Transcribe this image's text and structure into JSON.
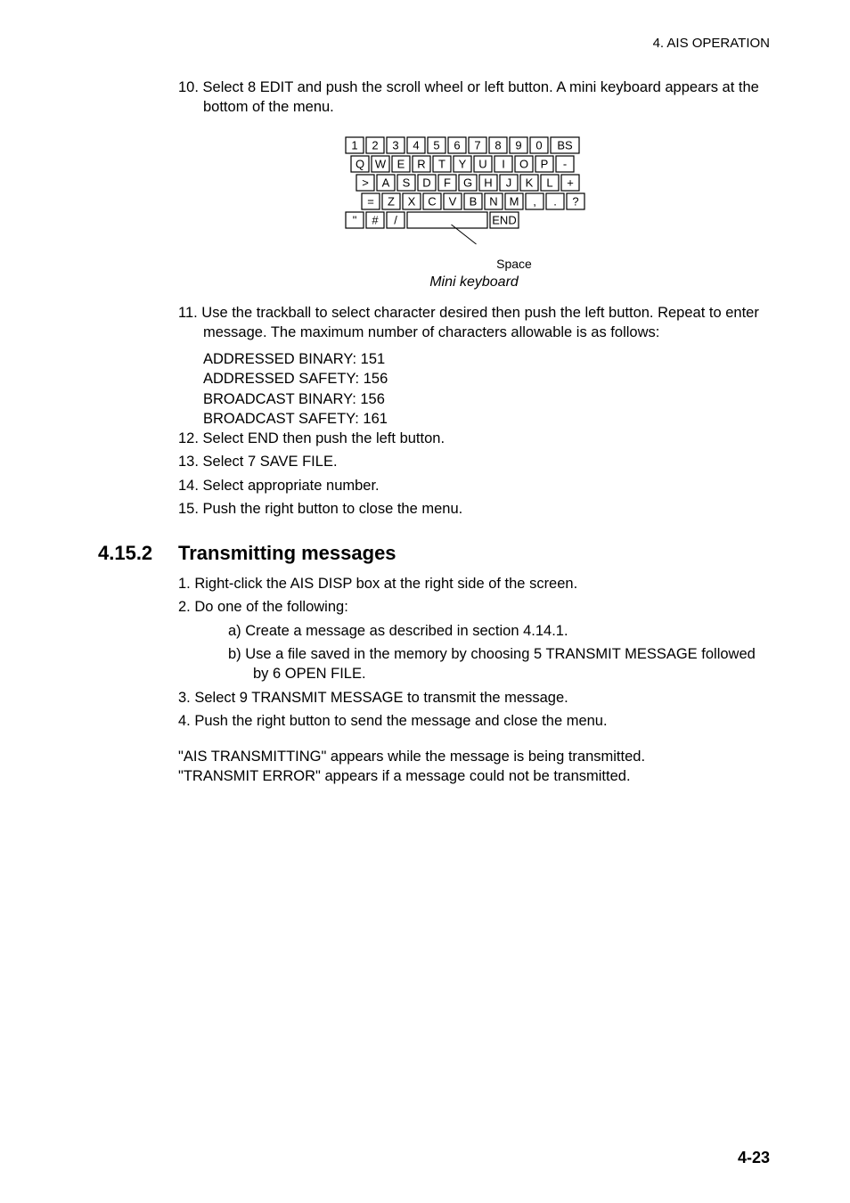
{
  "header": {
    "chapter": "4. AIS OPERATION"
  },
  "step10": {
    "text": "10. Select 8 EDIT and push the scroll wheel or left button. A mini keyboard appears at the bottom of the menu."
  },
  "keyboard": {
    "rows": [
      [
        "1",
        "2",
        "3",
        "4",
        "5",
        "6",
        "7",
        "8",
        "9",
        "0",
        "BS"
      ],
      [
        "Q",
        "W",
        "E",
        "R",
        "T",
        "Y",
        "U",
        "I",
        "O",
        "P",
        "-"
      ],
      [
        ">",
        "A",
        "S",
        "D",
        "F",
        "G",
        "H",
        "J",
        "K",
        "L",
        "+"
      ],
      [
        "=",
        "Z",
        "X",
        "C",
        "V",
        "B",
        "N",
        "M",
        ",",
        ".",
        "?"
      ],
      [
        "\"",
        "#",
        "/",
        "SPACE",
        "END"
      ]
    ],
    "space_label": "Space",
    "key_border": "#000000",
    "key_fill": "#ffffff",
    "font_size": 13
  },
  "fig1_caption": "Mini keyboard",
  "step11": {
    "lead": "11. Use the trackball to select character desired then push the left button. Repeat to enter message. The maximum number of characters allowable is as follows:",
    "lines": [
      {
        "label": "ADDRESSED BINARY:",
        "val": "151"
      },
      {
        "label": "ADDRESSED SAFETY:",
        "val": "156"
      },
      {
        "label": "BROADCAST BINARY:",
        "val": "156"
      },
      {
        "label": "BROADCAST SAFETY:",
        "val": "161"
      }
    ]
  },
  "step12": "12. Select END then push the left button.",
  "step13": "13. Select 7 SAVE FILE.",
  "step14": "14. Select appropriate number.",
  "step15": "15. Push the right button to close the menu.",
  "section": {
    "num": "4.15.2",
    "title": "Transmitting messages"
  },
  "tx_steps": {
    "s1": "1.  Right-click the AIS DISP box at the right side of the screen.",
    "s2": "2.  Do one of the following:",
    "s2a": "a)  Create a message as described in section 4.14.1.",
    "s2b": "b)  Use a file saved in the memory by choosing 5 TRANSMIT MESSAGE followed by 6 OPEN FILE.",
    "s3": "3.  Select 9 TRANSMIT MESSAGE to transmit the message.",
    "s4": "4.  Push the right button to send the message and close the menu."
  },
  "tail": {
    "l1": "\"AIS TRANSMITTING\" appears while the message is being transmitted.",
    "l2": "\"TRANSMIT ERROR\" appears if a message could not be transmitted."
  },
  "page_number": "4-23",
  "colors": {
    "text": "#000000",
    "bg": "#ffffff"
  }
}
